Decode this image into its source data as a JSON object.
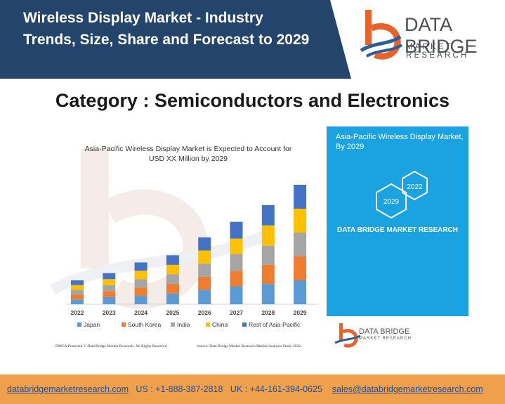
{
  "header": {
    "title": "Wireless Display Market - Industry Trends, Size, Share and Forecast to 2029",
    "brand_color": "#24456b"
  },
  "logo": {
    "name": "DATA BRIDGE",
    "tagline": "MARKET RESEARCH",
    "icon": "data-bridge-logo"
  },
  "category": "Category : Semiconductors and Electronics",
  "chart_data": {
    "type": "bar",
    "stacked": true,
    "title": "Asia-Pacific Wireless Display Market is Expected to Account for USD XX Million by 2029",
    "categories": [
      "2022",
      "2023",
      "2024",
      "2025",
      "2026",
      "2027",
      "2028",
      "2029"
    ],
    "series": [
      {
        "name": "Japan",
        "color": "#5b9bd5",
        "values": [
          4,
          6,
          7,
          9,
          12,
          15,
          17,
          20
        ]
      },
      {
        "name": "South Korea",
        "color": "#ed7d31",
        "values": [
          4,
          5,
          7,
          8,
          11,
          13,
          16,
          20
        ]
      },
      {
        "name": "India",
        "color": "#a5a5a5",
        "values": [
          4,
          5,
          7,
          8,
          11,
          14,
          16,
          20
        ]
      },
      {
        "name": "China",
        "color": "#ffc000",
        "values": [
          4,
          5,
          7,
          8,
          11,
          13,
          17,
          20
        ]
      },
      {
        "name": "Rest of Asia-Pacific",
        "color": "#4472c4",
        "values": [
          4,
          5,
          7,
          8,
          11,
          14,
          17,
          20
        ]
      }
    ],
    "xlabel": "",
    "ylabel": "",
    "grid": false,
    "legend_position": "bottom"
  },
  "side_panel": {
    "title": "Asia-Pacific Wireless Display Market, By 2029",
    "hex_labels": [
      "2022",
      "2029"
    ],
    "company": "DATA BRIDGE MARKET RESEARCH",
    "color": "#1aa3e0"
  },
  "footnotes": {
    "dmca": "DMCA Protected © Data Bridge Market Research- All Rights Reserved",
    "source": "Source: Data Bridge Market Research Market Analysis Study 2022"
  },
  "contact": {
    "website": "databridgemarketresearch.com",
    "us_phone": "US : +1-888-387-2818",
    "uk_phone": "UK : +44-161-394-0625",
    "email": "sales@databridgemarketresearch.com",
    "bar_color": "#f0a04b"
  }
}
